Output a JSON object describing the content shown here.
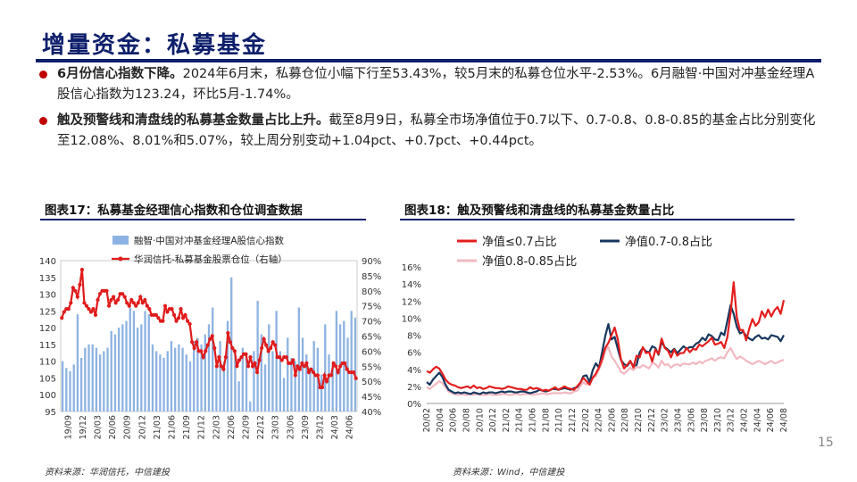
{
  "page": {
    "title": "增量资金：私募基金",
    "page_number": "15"
  },
  "bullets": [
    {
      "lead": "6月份信心指数下降。",
      "body": "2024年6月末，私募仓位小幅下行至53.43%，较5月末的私募仓位水平-2.53%。6月融智·中国对冲基金经理A股信心指数为123.24，环比5月-1.74%。"
    },
    {
      "lead": "触及预警线和清盘线的私募基金数量占比上升。",
      "body": "截至8月9日，私募全市场净值位于0.7以下、0.7-0.8、0.8-0.85的基金占比分别变化至12.08%、8.01%和5.07%，较上周分别变动+1.04pct、+0.7pct、+0.44pct。"
    }
  ],
  "figures": {
    "left": {
      "heading": "图表17：私募基金经理信心指数和仓位调查数据",
      "source": "资料来源：华润信托，中信建投"
    },
    "right": {
      "heading": "图表18：触及预警线和清盘线的私募基金数量占比",
      "source": "资料来源：Wind，中信建投"
    }
  },
  "chart_data": [
    {
      "type": "bar+line",
      "title": "图表17：私募基金经理信心指数和仓位调查数据",
      "x_tick_labels": [
        "19/09",
        "19/12",
        "20/03",
        "20/06",
        "20/09",
        "20/12",
        "21/03",
        "21/06",
        "21/09",
        "21/12",
        "22/03",
        "22/06",
        "22/09",
        "22/12",
        "23/03",
        "23/06",
        "23/09",
        "23/12",
        "24/03",
        "24/06"
      ],
      "y_left": {
        "lim": [
          95,
          140
        ],
        "ticks": [
          95,
          100,
          105,
          110,
          115,
          120,
          125,
          130,
          135,
          140
        ]
      },
      "y_right": {
        "lim": [
          40,
          90
        ],
        "ticks": [
          "40%",
          "45%",
          "50%",
          "55%",
          "60%",
          "65%",
          "70%",
          "75%",
          "80%",
          "85%",
          "90%"
        ]
      },
      "series": [
        {
          "name": "融智·中国对冲基金经理A股信心指数",
          "kind": "bar",
          "axis": "left",
          "color": "#8db3e2",
          "values": [
            110,
            108,
            107,
            109,
            124,
            111,
            114,
            115,
            115,
            114,
            112,
            113,
            114,
            119,
            118,
            120,
            121,
            122,
            126,
            125,
            120,
            121,
            125,
            124,
            115,
            113,
            112,
            111,
            113,
            116,
            114,
            115,
            114,
            112,
            110,
            116,
            117,
            115,
            118,
            121,
            126,
            108,
            116,
            110,
            122,
            135,
            113,
            104,
            114,
            112,
            98,
            113,
            128,
            118,
            109,
            121,
            113,
            125,
            113,
            105,
            117,
            111,
            110,
            126,
            117,
            112,
            108,
            116,
            114,
            106,
            121,
            112,
            109,
            125,
            121,
            122,
            117,
            125,
            123
          ]
        },
        {
          "name": "华润信托-私募基金股票仓位（右轴）",
          "kind": "line",
          "axis": "right",
          "color": "#e01b1b",
          "values": [
            71,
            73,
            74,
            74,
            76,
            81,
            80,
            78,
            82,
            87,
            76,
            75,
            74,
            73,
            74,
            72,
            77,
            79,
            80,
            80,
            80,
            75,
            77,
            78,
            76,
            77,
            79,
            79,
            78,
            76,
            75,
            77,
            76,
            75,
            76,
            78,
            76,
            77,
            75,
            74,
            72,
            72,
            72,
            71,
            70,
            70,
            75,
            73,
            74,
            74,
            72,
            70,
            71,
            74,
            71,
            72,
            70,
            69,
            63,
            61,
            63,
            60,
            60,
            58,
            60,
            62,
            64,
            65,
            61,
            55,
            58,
            55,
            54,
            58,
            66,
            63,
            61,
            60,
            55,
            57,
            58,
            59,
            59,
            55,
            58,
            55,
            56,
            53,
            57,
            61,
            64,
            62,
            60,
            61,
            63,
            62,
            58,
            58,
            57,
            58,
            58,
            56,
            56,
            57,
            52,
            55,
            54,
            56,
            55,
            56,
            53,
            54,
            53,
            52,
            52,
            48,
            48,
            52,
            50,
            52,
            52,
            56,
            55,
            53,
            55,
            56,
            56,
            54,
            53,
            53,
            53,
            51
          ]
        }
      ]
    },
    {
      "type": "line",
      "title": "图表18：触及预警线和清盘线的私募基金数量占比",
      "x_tick_labels": [
        "20/02",
        "20/04",
        "20/06",
        "20/08",
        "20/10",
        "20/12",
        "21/02",
        "21/04",
        "21/06",
        "21/08",
        "21/10",
        "21/12",
        "22/02",
        "22/04",
        "22/06",
        "22/08",
        "22/10",
        "22/12",
        "23/02",
        "23/04",
        "23/06",
        "23/08",
        "23/10",
        "23/12",
        "24/02",
        "24/04",
        "24/06",
        "24/08"
      ],
      "ylim": [
        0,
        16
      ],
      "y_ticks": [
        "0%",
        "2%",
        "4%",
        "6%",
        "8%",
        "10%",
        "12%",
        "14%",
        "16%"
      ],
      "series": [
        {
          "name": "净值≤0.7占比",
          "color": "#e31d1d",
          "values": [
            3.8,
            3.6,
            4.0,
            4.3,
            4.1,
            3.5,
            2.8,
            2.4,
            2.2,
            2.1,
            1.9,
            1.8,
            1.9,
            2.0,
            1.8,
            2.1,
            1.8,
            1.9,
            1.7,
            1.8,
            2.0,
            1.9,
            1.8,
            1.8,
            1.7,
            1.8,
            2.0,
            1.9,
            1.8,
            1.7,
            1.7,
            1.6,
            1.6,
            1.9,
            1.7,
            1.8,
            1.7,
            1.5,
            1.6,
            1.5,
            1.7,
            1.9,
            1.6,
            1.8,
            2.0,
            1.8,
            1.7,
            1.6,
            2.0,
            2.4,
            3.0,
            2.6,
            2.2,
            3.0,
            3.5,
            4.2,
            5.2,
            6.5,
            7.1,
            8.0,
            8.9,
            7.5,
            5.2,
            4.1,
            4.5,
            5.0,
            4.2,
            5.6,
            5.4,
            6.6,
            5.9,
            6.0,
            4.9,
            6.3,
            5.8,
            7.6,
            6.5,
            6.2,
            5.4,
            6.3,
            5.6,
            5.9,
            5.9,
            6.5,
            6.0,
            6.4,
            6.3,
            6.9,
            6.7,
            7.0,
            7.3,
            7.7,
            6.9,
            7.0,
            7.2,
            6.5,
            7.8,
            10.6,
            14.2,
            10.1,
            8.6,
            8.6,
            7.4,
            8.8,
            9.9,
            9.1,
            9.5,
            10.8,
            10.1,
            11.0,
            10.2,
            10.9,
            11.3,
            10.5,
            12.1
          ]
        },
        {
          "name": "净值0.7-0.8占比",
          "color": "#17375e",
          "values": [
            2.5,
            2.2,
            2.8,
            3.2,
            3.6,
            3.1,
            2.2,
            1.6,
            1.4,
            1.2,
            1.3,
            1.2,
            1.3,
            1.2,
            1.1,
            1.3,
            1.2,
            1.1,
            1.3,
            1.2,
            1.3,
            1.3,
            1.2,
            1.3,
            1.4,
            1.3,
            1.4,
            1.4,
            1.3,
            1.3,
            1.4,
            1.4,
            1.3,
            1.2,
            1.3,
            1.4,
            1.6,
            1.5,
            1.4,
            1.5,
            1.7,
            1.7,
            1.6,
            1.7,
            1.8,
            1.7,
            1.6,
            1.8,
            1.9,
            2.4,
            3.2,
            3.3,
            2.5,
            3.9,
            4.7,
            4.2,
            6.0,
            7.9,
            9.3,
            7.5,
            7.8,
            6.4,
            5.1,
            4.6,
            4.4,
            4.9,
            4.4,
            4.5,
            6.0,
            6.5,
            6.1,
            6.0,
            6.7,
            6.5,
            5.7,
            7.2,
            6.6,
            6.3,
            6.0,
            6.4,
            5.9,
            6.3,
            6.7,
            6.4,
            6.6,
            6.6,
            7.0,
            7.2,
            7.7,
            7.4,
            8.1,
            7.9,
            7.5,
            7.4,
            8.3,
            8.0,
            9.7,
            11.5,
            10.5,
            9.0,
            8.2,
            8.4,
            7.9,
            7.6,
            7.4,
            7.8,
            8.0,
            7.6,
            7.7,
            7.5,
            8.0,
            7.9,
            7.8,
            7.3,
            8.0
          ]
        },
        {
          "name": "净值0.8-0.85占比",
          "color": "#f2b8c0",
          "values": [
            1.9,
            1.7,
            2.0,
            2.3,
            2.6,
            2.4,
            1.9,
            1.4,
            1.2,
            1.1,
            1.0,
            1.1,
            1.0,
            1.0,
            1.1,
            1.0,
            1.1,
            1.0,
            1.0,
            1.0,
            1.1,
            1.0,
            1.0,
            1.0,
            1.1,
            1.1,
            1.0,
            1.0,
            1.1,
            1.1,
            1.0,
            1.1,
            1.1,
            1.1,
            1.0,
            1.1,
            1.1,
            1.2,
            1.1,
            1.1,
            1.2,
            1.2,
            1.2,
            1.2,
            1.3,
            1.2,
            1.2,
            1.4,
            1.5,
            2.0,
            2.5,
            2.2,
            2.4,
            3.0,
            3.2,
            4.0,
            4.8,
            6.2,
            6.6,
            5.5,
            5.0,
            4.4,
            3.7,
            3.5,
            3.8,
            4.2,
            3.9,
            4.3,
            4.2,
            4.5,
            4.3,
            4.1,
            4.8,
            4.6,
            4.2,
            5.0,
            4.5,
            4.6,
            4.2,
            4.5,
            4.6,
            4.4,
            4.7,
            4.6,
            4.6,
            4.8,
            4.6,
            4.9,
            4.7,
            5.0,
            5.1,
            5.3,
            5.0,
            5.3,
            5.4,
            5.3,
            6.0,
            6.5,
            5.8,
            5.2,
            5.5,
            5.3,
            5.0,
            4.8,
            4.6,
            4.8,
            5.0,
            4.8,
            4.6,
            4.8,
            5.0,
            4.7,
            4.8,
            5.0,
            5.1
          ]
        }
      ]
    }
  ]
}
